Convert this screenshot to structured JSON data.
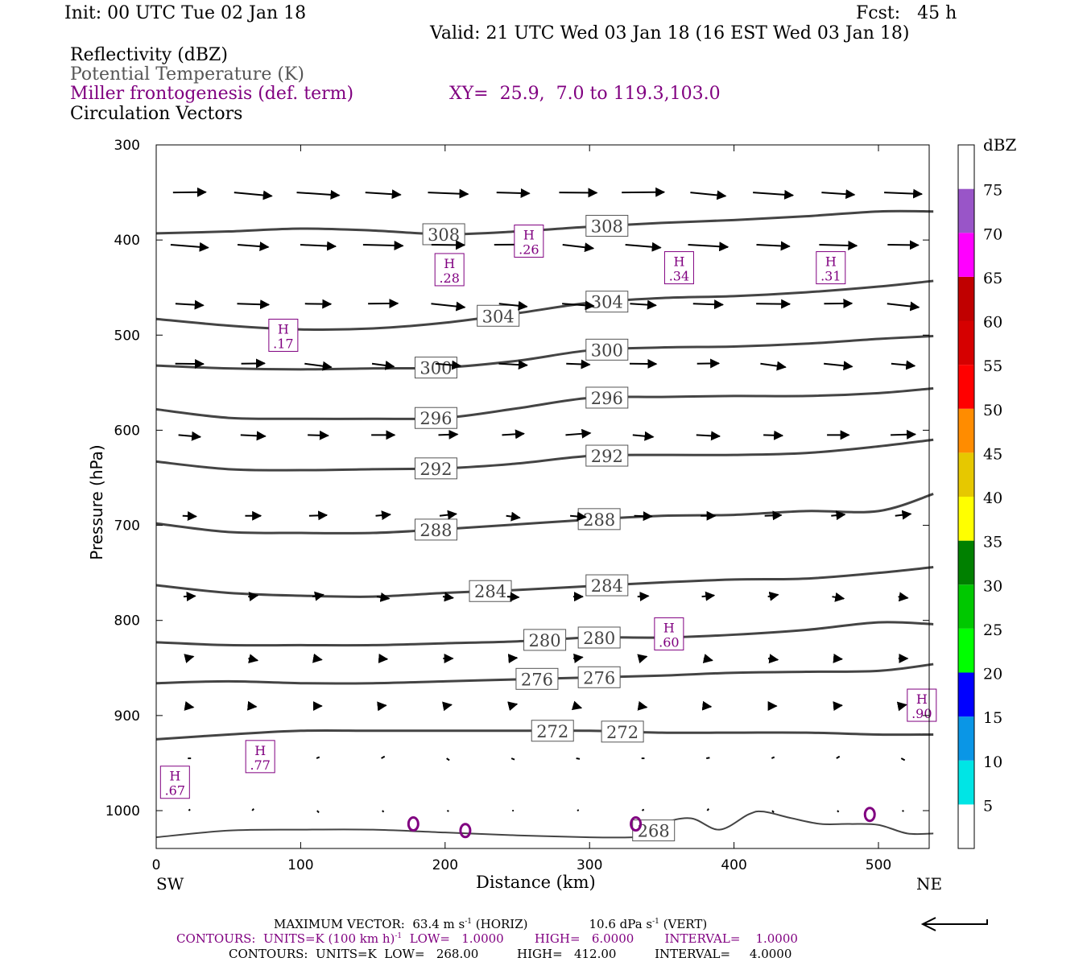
{
  "header": {
    "init": "Init: 00 UTC Tue 02 Jan 18",
    "fcst": "Fcst:   45 h",
    "valid": "Valid: 21 UTC Wed 03 Jan 18 (16 EST Wed 03 Jan 18)",
    "fields": [
      "Reflectivity (dBZ)",
      "Potential Temperature (K)",
      "Miller frontogenesis (def. term)",
      "Circulation Vectors"
    ],
    "xy": "XY=  25.9,  7.0 to 119.3,103.0"
  },
  "colors": {
    "theta": "#444444",
    "frontogenesis": "#800080",
    "vectors": "#000000",
    "dbz": [
      "#ffffff",
      "#00e5e5",
      "#0a96e6",
      "#0000ff",
      "#00ff00",
      "#00c800",
      "#008000",
      "#ffff00",
      "#e6c800",
      "#ff8c00",
      "#ff0000",
      "#d60000",
      "#c00000",
      "#ff00ff",
      "#9955c8",
      "#ffffff"
    ]
  },
  "chart_data": {
    "type": "cross-section",
    "xlabel": "Distance (km)",
    "ylabel": "Pressure (hPa)",
    "x_ticks": [
      0,
      100,
      200,
      300,
      400,
      500
    ],
    "y_ticks": [
      300,
      400,
      500,
      600,
      700,
      800,
      900,
      1000
    ],
    "xlim": [
      0,
      538
    ],
    "ylim": [
      300,
      1040
    ],
    "x_end_labels": [
      "SW",
      "NE"
    ],
    "colorbar": {
      "title": "dBZ",
      "ticks": [
        5,
        10,
        15,
        20,
        25,
        30,
        35,
        40,
        45,
        50,
        55,
        60,
        65,
        70,
        75
      ]
    },
    "theta_contours": [
      {
        "label": "308",
        "x": [
          0,
          50,
          100,
          150,
          200,
          250,
          300,
          350,
          400,
          450,
          500,
          538
        ],
        "p": [
          393,
          391,
          388,
          390,
          394,
          391,
          386,
          382,
          379,
          375,
          370,
          370
        ]
      },
      {
        "label": "304",
        "x": [
          0,
          50,
          100,
          150,
          200,
          250,
          300,
          350,
          400,
          450,
          500,
          538
        ],
        "p": [
          483,
          490,
          494,
          493,
          487,
          477,
          466,
          461,
          459,
          455,
          449,
          443
        ]
      },
      {
        "label": "300",
        "x": [
          0,
          50,
          100,
          150,
          200,
          250,
          300,
          350,
          400,
          450,
          500,
          538
        ],
        "p": [
          532,
          535,
          536,
          535,
          534,
          527,
          516,
          513,
          512,
          509,
          504,
          501
        ]
      },
      {
        "label": "296",
        "x": [
          0,
          50,
          100,
          150,
          200,
          250,
          300,
          350,
          400,
          450,
          500,
          538
        ],
        "p": [
          578,
          587,
          588,
          588,
          587,
          577,
          566,
          565,
          564,
          564,
          561,
          556
        ]
      },
      {
        "label": "292",
        "x": [
          0,
          50,
          100,
          150,
          200,
          250,
          300,
          350,
          400,
          450,
          500,
          538
        ],
        "p": [
          633,
          641,
          642,
          641,
          640,
          635,
          627,
          626,
          626,
          624,
          617,
          610
        ]
      },
      {
        "label": "288",
        "x": [
          0,
          50,
          100,
          150,
          200,
          250,
          300,
          350,
          400,
          450,
          500,
          538
        ],
        "p": [
          698,
          707,
          708,
          708,
          704,
          699,
          694,
          690,
          689,
          685,
          685,
          667
        ]
      },
      {
        "label": "284",
        "x": [
          0,
          50,
          100,
          150,
          200,
          250,
          300,
          350,
          400,
          450,
          500,
          538
        ],
        "p": [
          763,
          771,
          774,
          775,
          771,
          768,
          764,
          760,
          757,
          756,
          750,
          744
        ]
      },
      {
        "label": "280",
        "x": [
          0,
          50,
          100,
          150,
          200,
          250,
          300,
          350,
          400,
          450,
          500,
          538
        ],
        "p": [
          823,
          826,
          826,
          826,
          824,
          822,
          818,
          818,
          815,
          810,
          802,
          804
        ]
      },
      {
        "label": "276",
        "x": [
          0,
          50,
          100,
          150,
          200,
          250,
          300,
          350,
          400,
          450,
          500,
          538
        ],
        "p": [
          866,
          864,
          866,
          866,
          864,
          862,
          860,
          858,
          855,
          854,
          853,
          846
        ]
      },
      {
        "label": "272",
        "x": [
          0,
          50,
          100,
          150,
          200,
          250,
          300,
          350,
          400,
          450,
          500,
          538
        ],
        "p": [
          925,
          920,
          916,
          916,
          916,
          916,
          916,
          918,
          918,
          918,
          920,
          920
        ]
      },
      {
        "label": "268",
        "x": [
          0,
          50,
          100,
          150,
          200,
          250,
          300,
          330,
          340,
          350,
          370,
          390,
          410,
          420,
          440,
          460,
          480,
          500,
          520,
          538
        ],
        "p": [
          1028,
          1021,
          1020,
          1020,
          1023,
          1026,
          1028,
          1028,
          1026,
          1014,
          1008,
          1020,
          1004,
          1001,
          1008,
          1014,
          1014,
          1015,
          1024,
          1024
        ]
      }
    ],
    "frontogenesis_maxima": [
      {
        "label": "H",
        "value": ".17",
        "x": 88,
        "p": 501
      },
      {
        "label": "H",
        "value": ".28",
        "x": 203,
        "p": 432
      },
      {
        "label": "H",
        "value": ".26",
        "x": 258,
        "p": 402
      },
      {
        "label": "H",
        "value": ".34",
        "x": 362,
        "p": 430
      },
      {
        "label": "H",
        "value": ".31",
        "x": 467,
        "p": 430
      },
      {
        "label": "H",
        "value": ".60",
        "x": 355,
        "p": 815
      },
      {
        "label": "H",
        "value": ".90",
        "x": 530,
        "p": 890
      },
      {
        "label": "H",
        "value": ".77",
        "x": 72,
        "p": 944
      },
      {
        "label": "H",
        "value": ".67",
        "x": 13,
        "p": 971
      }
    ],
    "vector_levels_hPa": [
      350,
      405,
      467,
      530,
      605,
      690,
      775,
      840,
      890,
      945,
      1000
    ],
    "vector_columns_km": [
      23,
      67,
      112,
      157,
      202,
      247,
      292,
      337,
      382,
      427,
      472,
      517
    ]
  },
  "footer": {
    "vector_line": "MAXIMUM VECTOR:  63.4 m s",
    "vector_sup": "-1",
    "vector_horiz": " (HORIZ)",
    "vector_vert": "10.6 dPa s",
    "vector_vert_sup": "-1",
    "vector_vert_end": " (VERT)",
    "contours_fg": "CONTOURS:  UNITS=K (100 km h)",
    "contours_fg_sup": "-1",
    "contours_fg_rest": "  LOW=   1.0000        HIGH=   6.0000        INTERVAL=    1.0000",
    "contours_theta": "CONTOURS:  UNITS=K  LOW=   268.00          HIGH=   412.00          INTERVAL=     4.0000"
  }
}
